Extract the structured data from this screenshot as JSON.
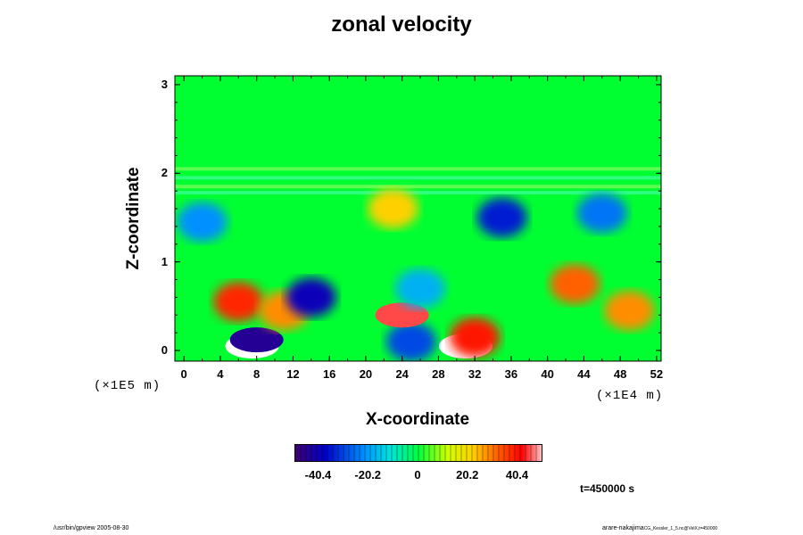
{
  "chart_data": {
    "type": "heatmap",
    "title": "zonal velocity",
    "xlabel": "X-coordinate",
    "ylabel": "Z-coordinate",
    "x_ticks": [
      "0",
      "4",
      "8",
      "12",
      "16",
      "20",
      "24",
      "28",
      "32",
      "36",
      "40",
      "44",
      "48",
      "52"
    ],
    "y_ticks": [
      "3",
      "2",
      "1",
      "0"
    ],
    "x_scale": "(×1E4 m)",
    "y_scale": "(×1E5 m)",
    "xlim": [
      -1,
      52.5
    ],
    "ylim": [
      -0.12,
      3.1
    ],
    "colorbar": {
      "ticks": [
        "-40.4",
        "-20.2",
        "0",
        "20.2",
        "40.4"
      ],
      "range": [
        -50,
        50
      ]
    },
    "time_label": "t=450000 s",
    "features": [
      {
        "x": 7.5,
        "z": 0.05,
        "u": 70
      },
      {
        "x": 8,
        "z": 0.12,
        "u": -45
      },
      {
        "x": 31,
        "z": 0.05,
        "u": 70
      },
      {
        "x": 32,
        "z": 0.15,
        "u": 40
      },
      {
        "x": 6,
        "z": 0.55,
        "u": 38
      },
      {
        "x": 11,
        "z": 0.45,
        "u": 28
      },
      {
        "x": 43,
        "z": 0.75,
        "u": 32
      },
      {
        "x": 49,
        "z": 0.45,
        "u": 28
      },
      {
        "x": 23,
        "z": 1.6,
        "u": 22
      },
      {
        "x": 35,
        "z": 1.5,
        "u": -35
      },
      {
        "x": 46,
        "z": 1.55,
        "u": -25
      },
      {
        "x": 2,
        "z": 1.45,
        "u": -22
      },
      {
        "x": 25,
        "z": 0.1,
        "u": -30
      },
      {
        "x": 14,
        "z": 0.6,
        "u": -40
      },
      {
        "x": 24,
        "z": 0.4,
        "u": 45
      },
      {
        "x": 26,
        "z": 0.7,
        "u": -18
      }
    ]
  },
  "footer": {
    "left": "/usr/bin/gpview 2005-08-30",
    "right_user": "arare-nakajima",
    "right_file": "CG_Kessler_1_5.nc@VelX,t=450000"
  }
}
